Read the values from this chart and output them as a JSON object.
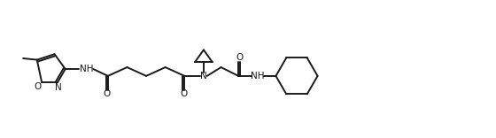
{
  "background_color": "#ffffff",
  "line_color": "#1a1a1a",
  "line_width": 1.4,
  "figsize": [
    5.6,
    1.56
  ],
  "dpi": 100,
  "xlim": [
    0,
    560
  ],
  "ylim": [
    0,
    156
  ]
}
